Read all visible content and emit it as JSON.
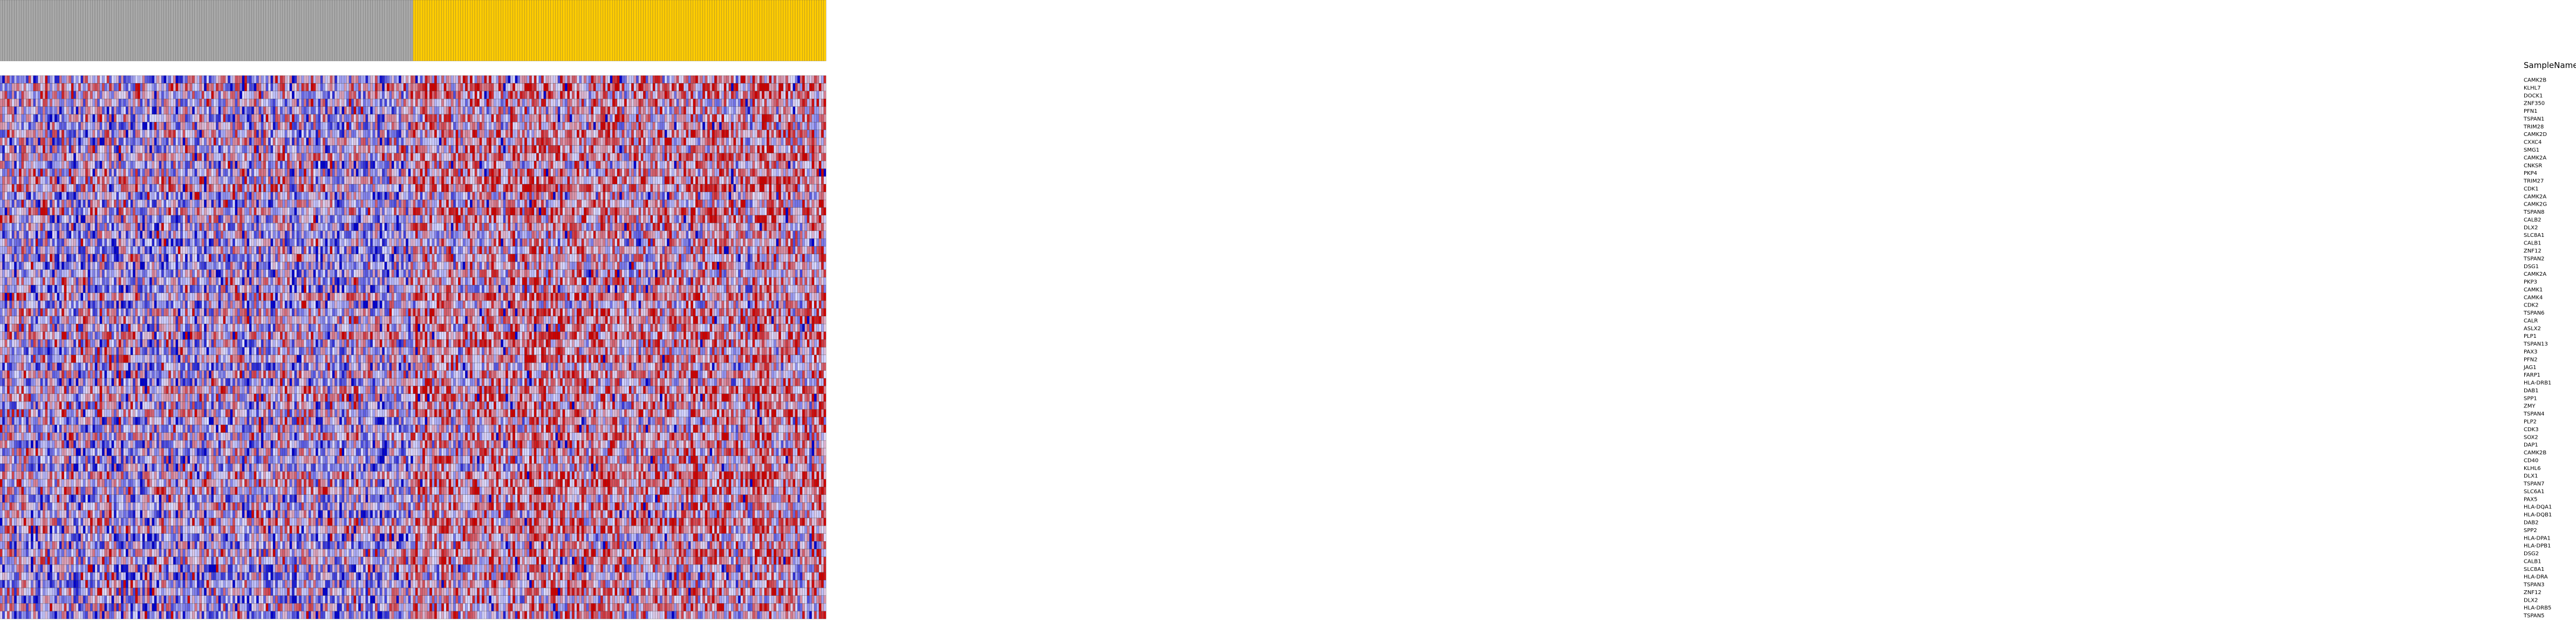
{
  "header_row_label": "SampleName",
  "sample_groups": [
    {
      "color": "#a9a9a9",
      "count": 174
    },
    {
      "color": "#ffcc00",
      "count": 174
    }
  ],
  "palette": {
    "low": "#0000cc",
    "mid": "#ddddff",
    "high": "#cc0000",
    "grid": "#333333"
  },
  "genes": [
    "CAMK2B",
    "KLHL7",
    "DOCK1",
    "ZNF350",
    "PFN1",
    "TSPAN1",
    "TRIM28",
    "CAMK2D",
    "CXXC4",
    "SMG1",
    "CAMK2A",
    "CNKSR",
    "PKP4",
    "TRIM27",
    "CDK1",
    "CAMK2A",
    "CAMK2G",
    "TSPAN8",
    "CALB2",
    "DLX2",
    "SLC8A1",
    "CALB1",
    "ZNF12",
    "TSPAN2",
    "DSG1",
    "CAMK2A",
    "PKP3",
    "CAMK1",
    "CAMK4",
    "CDK2",
    "TSPAN6",
    "CALR",
    "ASLX2",
    "PLP1",
    "TSPAN13",
    "PAX3",
    "PFN2",
    "JAG1",
    "FARP1",
    "HLA-DRB1",
    "DAB1",
    "SPP1",
    "ZMY",
    "TSPAN4",
    "PLP2",
    "CDK3",
    "SOX2",
    "DAP1",
    "CAMK2B",
    "CD40",
    "KLHL6",
    "DLX1",
    "TSPAN7",
    "SLC6A1",
    "PAX5",
    "HLA-DQA1",
    "HLA-DQB1",
    "DAB2",
    "SPP2",
    "HLA-DPA1",
    "HLA-DPB1",
    "DSG2",
    "CALB1",
    "SLC8A1",
    "HLA-DRA",
    "TSPAN3",
    "ZNF12",
    "DLX2",
    "HLA-DRB5",
    "TSPAN5"
  ]
}
